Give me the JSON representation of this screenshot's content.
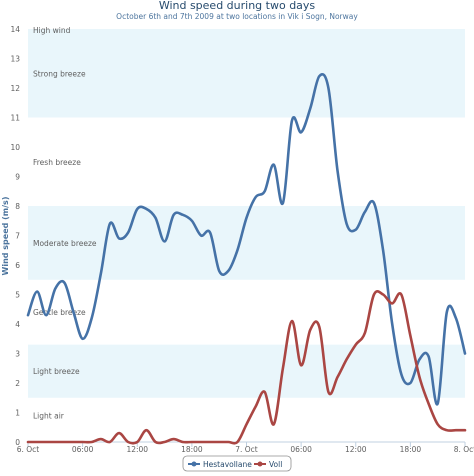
{
  "chart_data": {
    "type": "line",
    "title": "Wind speed during two days",
    "subtitle": "October 6th and 7th 2009 at two locations in Vik i Sogn, Norway",
    "ylabel": "Wind speed (m/s)",
    "xlabel": "",
    "ylim": [
      0,
      14
    ],
    "yticks": [
      "0",
      "1",
      "2",
      "3",
      "4",
      "5",
      "6",
      "7",
      "8",
      "9",
      "10",
      "11",
      "12",
      "13",
      "14"
    ],
    "x_tick_labels": [
      "6. Oct",
      "06:00",
      "12:00",
      "18:00",
      "7. Oct",
      "06:00",
      "12:00",
      "18:00",
      "8. Oct"
    ],
    "x_tick_hours": [
      0,
      6,
      12,
      18,
      24,
      30,
      36,
      42,
      48
    ],
    "grid": false,
    "legend_position": "bottom-center",
    "plot_bands": [
      {
        "label": "Light air",
        "from": 0.3,
        "to": 1.5,
        "shaded": false
      },
      {
        "label": "Light breeze",
        "from": 1.5,
        "to": 3.3,
        "shaded": true
      },
      {
        "label": "Gentle breeze",
        "from": 3.3,
        "to": 5.5,
        "shaded": false
      },
      {
        "label": "Moderate breeze",
        "from": 5.5,
        "to": 8,
        "shaded": true
      },
      {
        "label": "Fresh breeze",
        "from": 8,
        "to": 11,
        "shaded": false
      },
      {
        "label": "Strong breeze",
        "from": 11,
        "to": 14,
        "shaded": true
      },
      {
        "label": "High wind",
        "from": 14,
        "to": 15,
        "shaded": false
      }
    ],
    "series": [
      {
        "name": "Hestavollane",
        "color": "#4572a7",
        "x": [
          0,
          1,
          2,
          3,
          4,
          5,
          6,
          7,
          8,
          9,
          10,
          11,
          12,
          13,
          14,
          15,
          16,
          17,
          18,
          19,
          20,
          21,
          22,
          23,
          24,
          25,
          26,
          27,
          28,
          29,
          30,
          31,
          32,
          33,
          34,
          35,
          36,
          37,
          38,
          39,
          40,
          41,
          42,
          43,
          44,
          45,
          46,
          47,
          48
        ],
        "values": [
          4.3,
          5.1,
          4.3,
          5.2,
          5.4,
          4.4,
          3.5,
          4.2,
          5.7,
          7.4,
          6.9,
          7.1,
          7.9,
          7.9,
          7.6,
          6.8,
          7.7,
          7.7,
          7.5,
          7.0,
          7.1,
          5.8,
          5.8,
          6.5,
          7.6,
          8.3,
          8.5,
          9.4,
          8.1,
          10.9,
          10.5,
          11.3,
          12.4,
          12.0,
          9.2,
          7.4,
          7.2,
          7.8,
          8.1,
          6.5,
          4.0,
          2.3,
          2.0,
          2.8,
          2.9,
          1.3,
          4.4,
          4.2,
          3.0
        ]
      },
      {
        "name": "Voll",
        "color": "#aa4643",
        "x": [
          0,
          1,
          2,
          3,
          4,
          5,
          6,
          7,
          8,
          9,
          10,
          11,
          12,
          13,
          14,
          15,
          16,
          17,
          18,
          19,
          20,
          21,
          22,
          23,
          24,
          25,
          26,
          27,
          28,
          29,
          30,
          31,
          32,
          33,
          34,
          35,
          36,
          37,
          38,
          39,
          40,
          41,
          42,
          43,
          44,
          45,
          46,
          47,
          48
        ],
        "values": [
          0,
          0,
          0,
          0,
          0,
          0,
          0,
          0,
          0.1,
          0,
          0.3,
          0,
          0,
          0.4,
          0,
          0,
          0.1,
          0,
          0,
          0,
          0,
          0,
          0,
          0,
          0.6,
          1.2,
          1.7,
          0.6,
          2.5,
          4.1,
          2.6,
          3.8,
          3.9,
          1.7,
          2.2,
          2.8,
          3.3,
          3.7,
          5.0,
          5.0,
          4.7,
          5.0,
          3.6,
          2.2,
          1.3,
          0.6,
          0.4,
          0.4,
          0.4
        ]
      }
    ]
  }
}
